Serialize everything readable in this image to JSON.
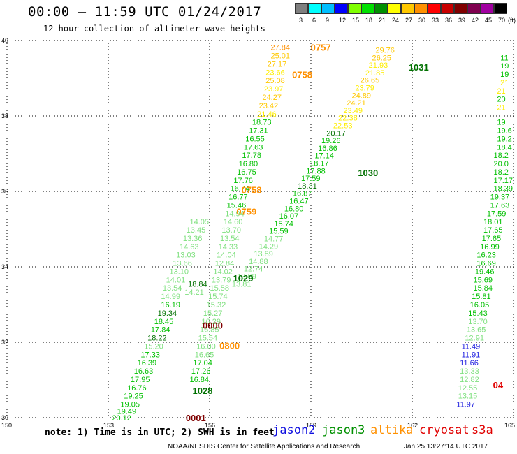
{
  "header": {
    "title": "00:00 – 11:59 UTC 01/24/2017",
    "subtitle": "12 hour collection of altimeter wave heights"
  },
  "colorbar": {
    "labels": [
      "3",
      "6",
      "9",
      "12",
      "15",
      "18",
      "21",
      "24",
      "27",
      "30",
      "33",
      "36",
      "39",
      "42",
      "45",
      "70",
      "(ft)"
    ],
    "colors": [
      "#7f7f7f",
      "#00ffff",
      "#00bfff",
      "#0000ff",
      "#7fff00",
      "#00e000",
      "#009000",
      "#ffff00",
      "#ffc800",
      "#ff9000",
      "#ff0000",
      "#c80000",
      "#800000",
      "#7f004f",
      "#a000a0",
      "#000000"
    ]
  },
  "footer": {
    "note": "note: 1) Time is in UTC; 2) SWH is in feet",
    "legend": [
      {
        "name": "jason2",
        "color": "#1010e0"
      },
      {
        "name": "jason3",
        "color": "#009000"
      },
      {
        "name": "altika",
        "color": "#ff9000"
      },
      {
        "name": "cryosat",
        "color": "#e00000"
      },
      {
        "name": "s3a",
        "color": "#e00000"
      }
    ],
    "credits": "NOAA/NESDIS Center for Satellite Applications and Research",
    "timestamp": "Jan 25 13:27:14 UTC 2017"
  },
  "chart_data": {
    "type": "scatter",
    "xlim": [
      150,
      165
    ],
    "ylim": [
      30,
      40
    ],
    "x_ticks": [
      "150",
      "153",
      "156",
      "159",
      "162",
      "165"
    ],
    "y_ticks": [
      "30",
      "32",
      "34",
      "36",
      "38",
      "40"
    ],
    "grid": true,
    "colors": {
      "c24": "#ffee00",
      "c27": "#ffc800",
      "c30": "#ff9000",
      "c18": "#00c000",
      "c15": "#50e050",
      "c12": "#2020e0",
      "light": "#7fe07f",
      "dark": "#007000",
      "red": "#e00000",
      "maroon": "#800000"
    },
    "pass_labels": [
      {
        "x": 159.2,
        "y": 39.82,
        "text": "0757",
        "color": "c30"
      },
      {
        "x": 158.65,
        "y": 39.1,
        "text": "0758",
        "color": "c30"
      },
      {
        "x": 162.1,
        "y": 39.3,
        "text": "1031",
        "color": "dark"
      },
      {
        "x": 160.6,
        "y": 36.5,
        "text": "1030",
        "color": "dark"
      },
      {
        "x": 157.15,
        "y": 36.05,
        "text": "0758",
        "color": "c30"
      },
      {
        "x": 157.0,
        "y": 35.47,
        "text": "0759",
        "color": "c30"
      },
      {
        "x": 156.9,
        "y": 33.7,
        "text": "1029",
        "color": "dark"
      },
      {
        "x": 156.0,
        "y": 32.45,
        "text": "0000",
        "color": "maroon"
      },
      {
        "x": 156.5,
        "y": 31.92,
        "text": "0800",
        "color": "c30"
      },
      {
        "x": 155.7,
        "y": 30.72,
        "text": "1028",
        "color": "dark"
      },
      {
        "x": 155.5,
        "y": 30.0,
        "text": "0001",
        "color": "maroon"
      },
      {
        "x": 164.6,
        "y": 30.87,
        "text": "04",
        "color": "red"
      }
    ],
    "series": [
      {
        "name": "track_a",
        "color_default": "c24",
        "points": [
          {
            "x": 158.1,
            "y": 39.82,
            "v": "27.84",
            "c": "c30"
          },
          {
            "x": 158.1,
            "y": 39.6,
            "v": "25.01",
            "c": "c27"
          },
          {
            "x": 158.0,
            "y": 39.38,
            "v": "27.17",
            "c": "c27"
          },
          {
            "x": 157.95,
            "y": 39.16,
            "v": "23.66"
          },
          {
            "x": 157.95,
            "y": 38.94,
            "v": "25.08",
            "c": "c27"
          },
          {
            "x": 157.9,
            "y": 38.72,
            "v": "23.97"
          },
          {
            "x": 157.85,
            "y": 38.5,
            "v": "24.27",
            "c": "c27"
          },
          {
            "x": 157.75,
            "y": 38.28,
            "v": "23.42",
            "c": "c27"
          },
          {
            "x": 157.7,
            "y": 38.06,
            "v": "21.46"
          }
        ]
      },
      {
        "name": "track_a_green",
        "color_default": "c18",
        "points": [
          {
            "x": 157.55,
            "y": 37.84,
            "v": "18.73"
          },
          {
            "x": 157.45,
            "y": 37.62,
            "v": "17.31"
          },
          {
            "x": 157.35,
            "y": 37.4,
            "v": "16.55"
          },
          {
            "x": 157.3,
            "y": 37.18,
            "v": "17.63"
          },
          {
            "x": 157.25,
            "y": 36.96,
            "v": "17.78"
          },
          {
            "x": 157.15,
            "y": 36.74,
            "v": "16.80"
          },
          {
            "x": 157.1,
            "y": 36.52,
            "v": "16.75"
          },
          {
            "x": 157.0,
            "y": 36.3,
            "v": "17.76"
          },
          {
            "x": 156.9,
            "y": 36.08,
            "v": "16.74"
          },
          {
            "x": 156.85,
            "y": 35.86,
            "v": "16.77"
          },
          {
            "x": 156.8,
            "y": 35.64,
            "v": "15.46"
          },
          {
            "x": 156.75,
            "y": 35.42,
            "v": "14.94",
            "c": "light"
          },
          {
            "x": 156.7,
            "y": 35.2,
            "v": "14.60",
            "c": "light"
          },
          {
            "x": 156.65,
            "y": 34.98,
            "v": "13.70",
            "c": "light"
          },
          {
            "x": 156.6,
            "y": 34.76,
            "v": "13.54",
            "c": "light"
          },
          {
            "x": 156.55,
            "y": 34.54,
            "v": "14.33",
            "c": "light"
          },
          {
            "x": 156.5,
            "y": 34.32,
            "v": "14.04",
            "c": "light"
          },
          {
            "x": 156.45,
            "y": 34.1,
            "v": "12.84",
            "c": "light"
          },
          {
            "x": 156.4,
            "y": 33.88,
            "v": "14.02",
            "c": "light"
          },
          {
            "x": 156.35,
            "y": 33.66,
            "v": "13.79",
            "c": "light"
          },
          {
            "x": 156.3,
            "y": 33.44,
            "v": "15.58",
            "c": "light"
          },
          {
            "x": 156.25,
            "y": 33.22,
            "v": "15.74",
            "c": "light"
          },
          {
            "x": 156.2,
            "y": 33.0,
            "v": "15.32",
            "c": "light"
          },
          {
            "x": 156.1,
            "y": 32.78,
            "v": "15.27",
            "c": "light"
          },
          {
            "x": 156.05,
            "y": 32.56,
            "v": "16.29",
            "c": "light"
          },
          {
            "x": 156.0,
            "y": 32.34,
            "v": "16.85",
            "c": "light"
          },
          {
            "x": 155.95,
            "y": 32.12,
            "v": "15.54",
            "c": "light"
          },
          {
            "x": 155.9,
            "y": 31.9,
            "v": "16.00",
            "c": "light"
          },
          {
            "x": 155.85,
            "y": 31.68,
            "v": "16.65",
            "c": "light"
          },
          {
            "x": 155.8,
            "y": 31.46,
            "v": "17.04"
          },
          {
            "x": 155.75,
            "y": 31.24,
            "v": "17.26"
          },
          {
            "x": 155.7,
            "y": 31.02,
            "v": "16.84"
          }
        ]
      },
      {
        "name": "track_b",
        "color_default": "c24",
        "points": [
          {
            "x": 161.2,
            "y": 39.75,
            "v": "29.76",
            "c": "c27"
          },
          {
            "x": 161.1,
            "y": 39.55,
            "v": "26.25",
            "c": "c27"
          },
          {
            "x": 161.0,
            "y": 39.35,
            "v": "21.93"
          },
          {
            "x": 160.9,
            "y": 39.15,
            "v": "21.85"
          },
          {
            "x": 160.75,
            "y": 38.95,
            "v": "26.65",
            "c": "c27"
          },
          {
            "x": 160.6,
            "y": 38.75,
            "v": "23.79"
          },
          {
            "x": 160.5,
            "y": 38.55,
            "v": "24.89",
            "c": "c27"
          },
          {
            "x": 160.35,
            "y": 38.35,
            "v": "24.21",
            "c": "c27"
          },
          {
            "x": 160.25,
            "y": 38.15,
            "v": "23.49"
          },
          {
            "x": 160.1,
            "y": 37.95,
            "v": "22.38"
          },
          {
            "x": 159.95,
            "y": 37.75,
            "v": "22.53"
          }
        ]
      },
      {
        "name": "track_b_green",
        "color_default": "c18",
        "points": [
          {
            "x": 159.75,
            "y": 37.55,
            "v": "20.17",
            "c": "dark"
          },
          {
            "x": 159.6,
            "y": 37.35,
            "v": "19.26"
          },
          {
            "x": 159.5,
            "y": 37.15,
            "v": "16.86"
          },
          {
            "x": 159.4,
            "y": 36.95,
            "v": "17.14"
          },
          {
            "x": 159.25,
            "y": 36.75,
            "v": "18.17"
          },
          {
            "x": 159.15,
            "y": 36.55,
            "v": "17.88"
          },
          {
            "x": 159.0,
            "y": 36.35,
            "v": "17.59"
          },
          {
            "x": 158.9,
            "y": 36.15,
            "v": "18.31",
            "c": "dark"
          },
          {
            "x": 158.75,
            "y": 35.95,
            "v": "16.87"
          },
          {
            "x": 158.65,
            "y": 35.75,
            "v": "16.47"
          },
          {
            "x": 158.5,
            "y": 35.55,
            "v": "16.80"
          },
          {
            "x": 158.35,
            "y": 35.35,
            "v": "16.07"
          },
          {
            "x": 158.2,
            "y": 35.15,
            "v": "15.74"
          },
          {
            "x": 158.05,
            "y": 34.95,
            "v": "15.59"
          },
          {
            "x": 157.9,
            "y": 34.75,
            "v": "14.77",
            "c": "light"
          },
          {
            "x": 157.75,
            "y": 34.55,
            "v": "14.29",
            "c": "light"
          },
          {
            "x": 157.6,
            "y": 34.35,
            "v": "13.89",
            "c": "light"
          },
          {
            "x": 157.45,
            "y": 34.15,
            "v": "14.88",
            "c": "light"
          },
          {
            "x": 157.3,
            "y": 33.95,
            "v": "12.74",
            "c": "light"
          },
          {
            "x": 157.1,
            "y": 33.75,
            "v": "13.69",
            "c": "light"
          },
          {
            "x": 156.95,
            "y": 33.55,
            "v": "13.81",
            "c": "light"
          }
        ]
      },
      {
        "name": "track_c",
        "color_default": "light",
        "points": [
          {
            "x": 155.7,
            "y": 35.2,
            "v": "14.05"
          },
          {
            "x": 155.6,
            "y": 34.98,
            "v": "13.45"
          },
          {
            "x": 155.5,
            "y": 34.76,
            "v": "13.36"
          },
          {
            "x": 155.4,
            "y": 34.54,
            "v": "14.63"
          },
          {
            "x": 155.3,
            "y": 34.32,
            "v": "13.03"
          },
          {
            "x": 155.2,
            "y": 34.1,
            "v": "13.66"
          },
          {
            "x": 155.1,
            "y": 33.88,
            "v": "13.10"
          },
          {
            "x": 155.0,
            "y": 33.66,
            "v": "14.01"
          },
          {
            "x": 154.9,
            "y": 33.44,
            "v": "13.54"
          },
          {
            "x": 155.65,
            "y": 33.55,
            "v": "18.84",
            "c": "dark"
          },
          {
            "x": 155.55,
            "y": 33.33,
            "v": "14.21"
          },
          {
            "x": 154.85,
            "y": 33.22,
            "v": "14.99"
          },
          {
            "x": 154.85,
            "y": 33.0,
            "v": "16.19",
            "c": "c18"
          },
          {
            "x": 154.75,
            "y": 32.78,
            "v": "19.34",
            "c": "dark"
          },
          {
            "x": 154.65,
            "y": 32.56,
            "v": "18.45",
            "c": "c18"
          },
          {
            "x": 154.55,
            "y": 32.34,
            "v": "17.84",
            "c": "c18"
          },
          {
            "x": 154.45,
            "y": 32.12,
            "v": "18.22",
            "c": "dark"
          },
          {
            "x": 154.35,
            "y": 31.9,
            "v": "15.20"
          },
          {
            "x": 154.25,
            "y": 31.68,
            "v": "17.33",
            "c": "c18"
          },
          {
            "x": 154.15,
            "y": 31.46,
            "v": "16.39",
            "c": "c18"
          },
          {
            "x": 154.05,
            "y": 31.24,
            "v": "16.63",
            "c": "c18"
          },
          {
            "x": 153.95,
            "y": 31.02,
            "v": "17.95",
            "c": "c18"
          },
          {
            "x": 153.85,
            "y": 30.8,
            "v": "16.76",
            "c": "c18"
          },
          {
            "x": 153.75,
            "y": 30.58,
            "v": "19.25",
            "c": "c18"
          },
          {
            "x": 153.65,
            "y": 30.36,
            "v": "19.05",
            "c": "c18"
          },
          {
            "x": 153.55,
            "y": 30.18,
            "v": "19.49",
            "c": "c18"
          },
          {
            "x": 153.4,
            "y": 30.0,
            "v": "20.12",
            "c": "c18"
          }
        ]
      },
      {
        "name": "track_right",
        "color_default": "c18",
        "points": [
          {
            "x": 164.9,
            "y": 39.55,
            "v": "11",
            "c": "c18"
          },
          {
            "x": 164.9,
            "y": 39.33,
            "v": "19"
          },
          {
            "x": 164.9,
            "y": 39.11,
            "v": "19"
          },
          {
            "x": 164.9,
            "y": 38.89,
            "v": "21",
            "c": "c24"
          },
          {
            "x": 164.8,
            "y": 38.67,
            "v": "21",
            "c": "c24"
          },
          {
            "x": 164.8,
            "y": 38.45,
            "v": "20"
          },
          {
            "x": 164.8,
            "y": 38.23,
            "v": "21",
            "c": "c24"
          },
          {
            "x": 164.8,
            "y": 37.84,
            "v": "19"
          },
          {
            "x": 164.8,
            "y": 37.62,
            "v": "19.6"
          },
          {
            "x": 164.8,
            "y": 37.4,
            "v": "19.2"
          },
          {
            "x": 164.8,
            "y": 37.18,
            "v": "18.4"
          },
          {
            "x": 164.7,
            "y": 36.96,
            "v": "18.2"
          },
          {
            "x": 164.7,
            "y": 36.74,
            "v": "20.0"
          },
          {
            "x": 164.7,
            "y": 36.52,
            "v": "18.2"
          },
          {
            "x": 164.7,
            "y": 36.3,
            "v": "17.17"
          },
          {
            "x": 164.7,
            "y": 36.08,
            "v": "18.39"
          },
          {
            "x": 164.6,
            "y": 35.86,
            "v": "19.37"
          },
          {
            "x": 164.6,
            "y": 35.64,
            "v": "17.63"
          },
          {
            "x": 164.5,
            "y": 35.42,
            "v": "17.59"
          },
          {
            "x": 164.4,
            "y": 35.2,
            "v": "18.01"
          },
          {
            "x": 164.4,
            "y": 34.98,
            "v": "17.65"
          },
          {
            "x": 164.35,
            "y": 34.76,
            "v": "17.65"
          },
          {
            "x": 164.3,
            "y": 34.54,
            "v": "16.99"
          },
          {
            "x": 164.2,
            "y": 34.32,
            "v": "16.23"
          },
          {
            "x": 164.2,
            "y": 34.1,
            "v": "16.69"
          },
          {
            "x": 164.15,
            "y": 33.88,
            "v": "19.46"
          },
          {
            "x": 164.1,
            "y": 33.66,
            "v": "15.69"
          },
          {
            "x": 164.1,
            "y": 33.44,
            "v": "15.84"
          },
          {
            "x": 164.05,
            "y": 33.22,
            "v": "15.81"
          },
          {
            "x": 164.0,
            "y": 33.0,
            "v": "16.05"
          },
          {
            "x": 163.95,
            "y": 32.78,
            "v": "15.43"
          },
          {
            "x": 163.95,
            "y": 32.56,
            "v": "13.70",
            "c": "light"
          },
          {
            "x": 163.9,
            "y": 32.34,
            "v": "13.65",
            "c": "light"
          },
          {
            "x": 163.85,
            "y": 32.12,
            "v": "12.91",
            "c": "light"
          },
          {
            "x": 163.75,
            "y": 31.9,
            "v": "11.49",
            "c": "c12"
          },
          {
            "x": 163.75,
            "y": 31.68,
            "v": "11.91",
            "c": "c12"
          },
          {
            "x": 163.7,
            "y": 31.46,
            "v": "11.66",
            "c": "c12"
          },
          {
            "x": 163.7,
            "y": 31.24,
            "v": "13.33",
            "c": "light"
          },
          {
            "x": 163.7,
            "y": 31.02,
            "v": "12.82",
            "c": "light"
          },
          {
            "x": 163.65,
            "y": 30.8,
            "v": "12.55",
            "c": "light"
          },
          {
            "x": 163.65,
            "y": 30.58,
            "v": "13.15",
            "c": "light"
          },
          {
            "x": 163.6,
            "y": 30.36,
            "v": "11.97",
            "c": "c12"
          }
        ]
      }
    ]
  }
}
